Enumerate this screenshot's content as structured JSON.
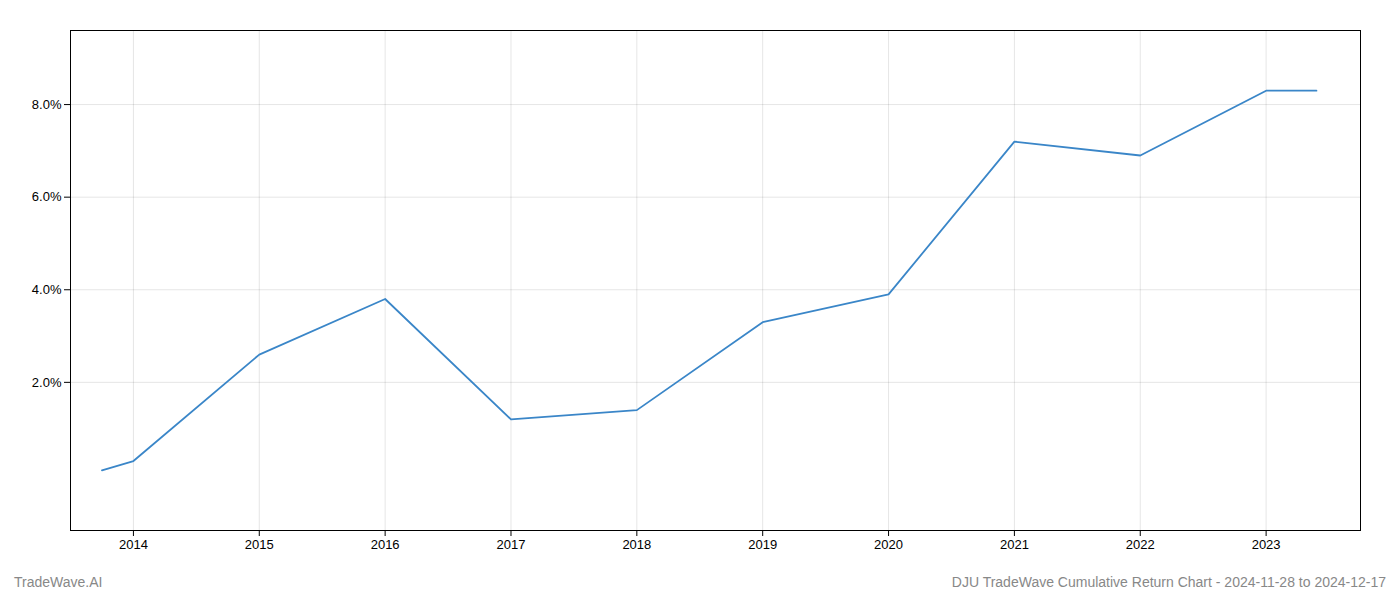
{
  "chart_data": {
    "type": "line",
    "title": "DJU TradeWave Cumulative Return Chart - 2024-11-28 to 2024-12-17",
    "annotations": [
      "TradeWave.AI"
    ],
    "x": [
      2013.75,
      2014,
      2015,
      2016,
      2017,
      2018,
      2019,
      2020,
      2021,
      2022,
      2023,
      2023.4
    ],
    "values": [
      0.001,
      0.003,
      0.026,
      0.038,
      0.012,
      0.014,
      0.033,
      0.039,
      0.072,
      0.069,
      0.083,
      0.083
    ],
    "color": "#3a86c8",
    "xlim": [
      2013.5,
      2023.75
    ],
    "xticks": [
      2014,
      2015,
      2016,
      2017,
      2018,
      2019,
      2020,
      2021,
      2022,
      2023
    ],
    "ylim": [
      -0.012,
      0.096
    ],
    "yticks": [
      {
        "value": 0.02,
        "label": "2.0%"
      },
      {
        "value": 0.04,
        "label": "4.0%"
      },
      {
        "value": 0.06,
        "label": "6.0%"
      },
      {
        "value": 0.08,
        "label": "8.0%"
      }
    ],
    "grid": true
  }
}
